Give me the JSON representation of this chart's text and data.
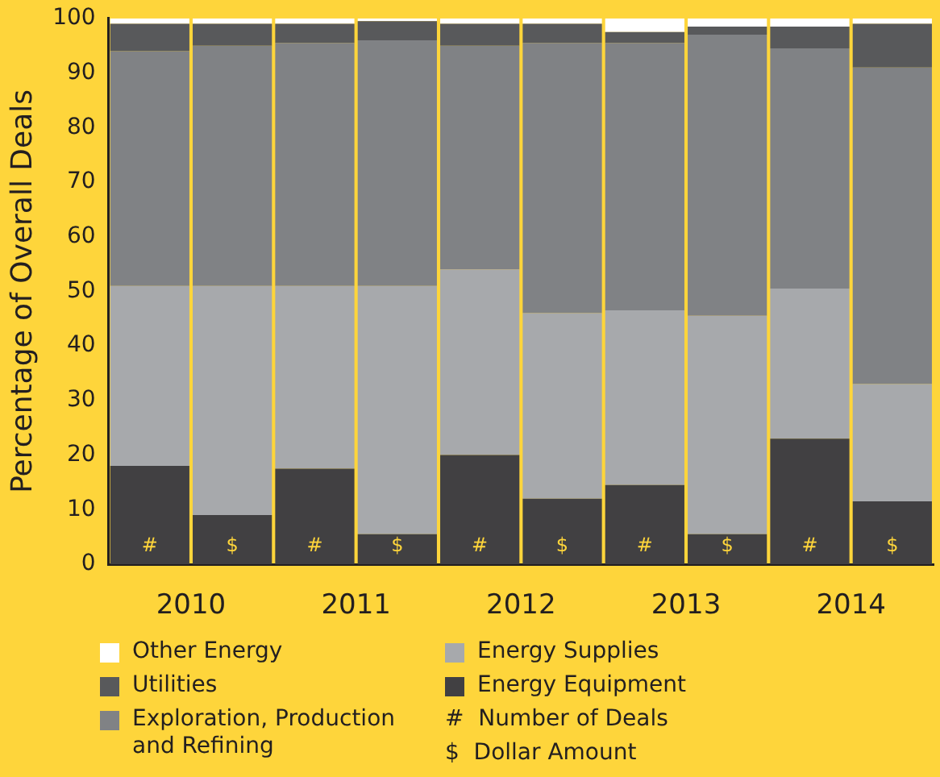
{
  "chart_data": {
    "type": "bar",
    "stacked": true,
    "ylabel": "Percentage of Overall Deals",
    "categories": [
      "#",
      "$",
      "#",
      "$",
      "#",
      "$",
      "#",
      "$",
      "#",
      "$"
    ],
    "series": [
      {
        "name": "Energy Equipment",
        "color": "#414042",
        "values": [
          18,
          9,
          17.5,
          5.5,
          20,
          12,
          14.5,
          5.5,
          23,
          11.5
        ]
      },
      {
        "name": "Energy Supplies",
        "color": "#a7a9ac",
        "values": [
          33,
          42,
          33.5,
          45.5,
          34,
          34,
          32,
          40,
          27.5,
          21.5
        ]
      },
      {
        "name": "Exploration, Production and Refining",
        "color": "#808285",
        "values": [
          43,
          44,
          44.5,
          45,
          41,
          49.5,
          49,
          51.5,
          44,
          58
        ]
      },
      {
        "name": "Utilities",
        "color": "#58595b",
        "values": [
          5,
          4,
          3.5,
          3.5,
          4,
          3.5,
          2,
          1.5,
          4,
          8
        ]
      },
      {
        "name": "Other Energy",
        "color": "#ffffff",
        "values": [
          1,
          1,
          1,
          0.5,
          1,
          1,
          2.5,
          1.5,
          1.5,
          1
        ]
      }
    ],
    "ylim": [
      0,
      100
    ],
    "yticks": [
      0,
      10,
      20,
      30,
      40,
      50,
      60,
      70,
      80,
      90,
      100
    ],
    "grid": false,
    "legend": "bottom",
    "annotations": [
      "2010",
      "2011",
      "2012",
      "2013",
      "2014",
      "#  Number of Deals",
      "$  Dollar Amount"
    ]
  }
}
